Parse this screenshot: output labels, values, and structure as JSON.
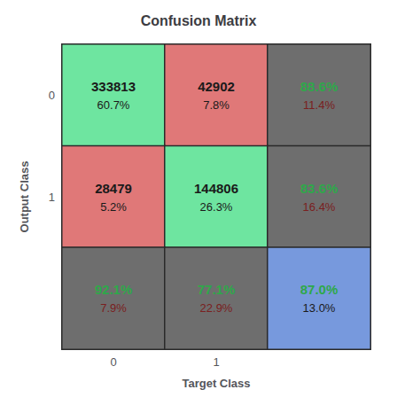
{
  "chart_data": {
    "type": "heatmap",
    "title": "Confusion Matrix",
    "xlabel": "Target Class",
    "ylabel": "Output Class",
    "x_categories": [
      "0",
      "1",
      null
    ],
    "y_categories": [
      "0",
      "1",
      null
    ],
    "cells": [
      {
        "row": 0,
        "col": 0,
        "color": "#6EE5A0",
        "values": [
          333813,
          60.7
        ],
        "value_labels": [
          "333813",
          "60.7%"
        ],
        "label_colors": [
          "#1a1a1a",
          "#1a1a1a"
        ]
      },
      {
        "row": 0,
        "col": 1,
        "color": "#E07878",
        "values": [
          42902,
          7.8
        ],
        "value_labels": [
          "42902",
          "7.8%"
        ],
        "label_colors": [
          "#1a1a1a",
          "#1a1a1a"
        ]
      },
      {
        "row": 0,
        "col": 2,
        "color": "#6E6E6E",
        "values": [
          88.6,
          11.4
        ],
        "value_labels": [
          "88.6%",
          "11.4%"
        ],
        "label_colors": [
          "#2ea84a",
          "#7a2020"
        ]
      },
      {
        "row": 1,
        "col": 0,
        "color": "#E07878",
        "values": [
          28479,
          5.2
        ],
        "value_labels": [
          "28479",
          "5.2%"
        ],
        "label_colors": [
          "#1a1a1a",
          "#1a1a1a"
        ]
      },
      {
        "row": 1,
        "col": 1,
        "color": "#6EE5A0",
        "values": [
          144806,
          26.3
        ],
        "value_labels": [
          "144806",
          "26.3%"
        ],
        "label_colors": [
          "#1a1a1a",
          "#1a1a1a"
        ]
      },
      {
        "row": 1,
        "col": 2,
        "color": "#6E6E6E",
        "values": [
          83.6,
          16.4
        ],
        "value_labels": [
          "83.6%",
          "16.4%"
        ],
        "label_colors": [
          "#2ea84a",
          "#7a2020"
        ]
      },
      {
        "row": 2,
        "col": 0,
        "color": "#6E6E6E",
        "values": [
          92.1,
          7.9
        ],
        "value_labels": [
          "92.1%",
          "7.9%"
        ],
        "label_colors": [
          "#2ea84a",
          "#7a2020"
        ]
      },
      {
        "row": 2,
        "col": 1,
        "color": "#6E6E6E",
        "values": [
          77.1,
          22.9
        ],
        "value_labels": [
          "77.1%",
          "22.9%"
        ],
        "label_colors": [
          "#2ea84a",
          "#7a2020"
        ]
      },
      {
        "row": 2,
        "col": 2,
        "color": "#7799DD",
        "values": [
          87.0,
          13.0
        ],
        "value_labels": [
          "87.0%",
          "13.0%"
        ],
        "label_colors": [
          "#2ea84a",
          "#1a1a1a"
        ]
      }
    ]
  }
}
